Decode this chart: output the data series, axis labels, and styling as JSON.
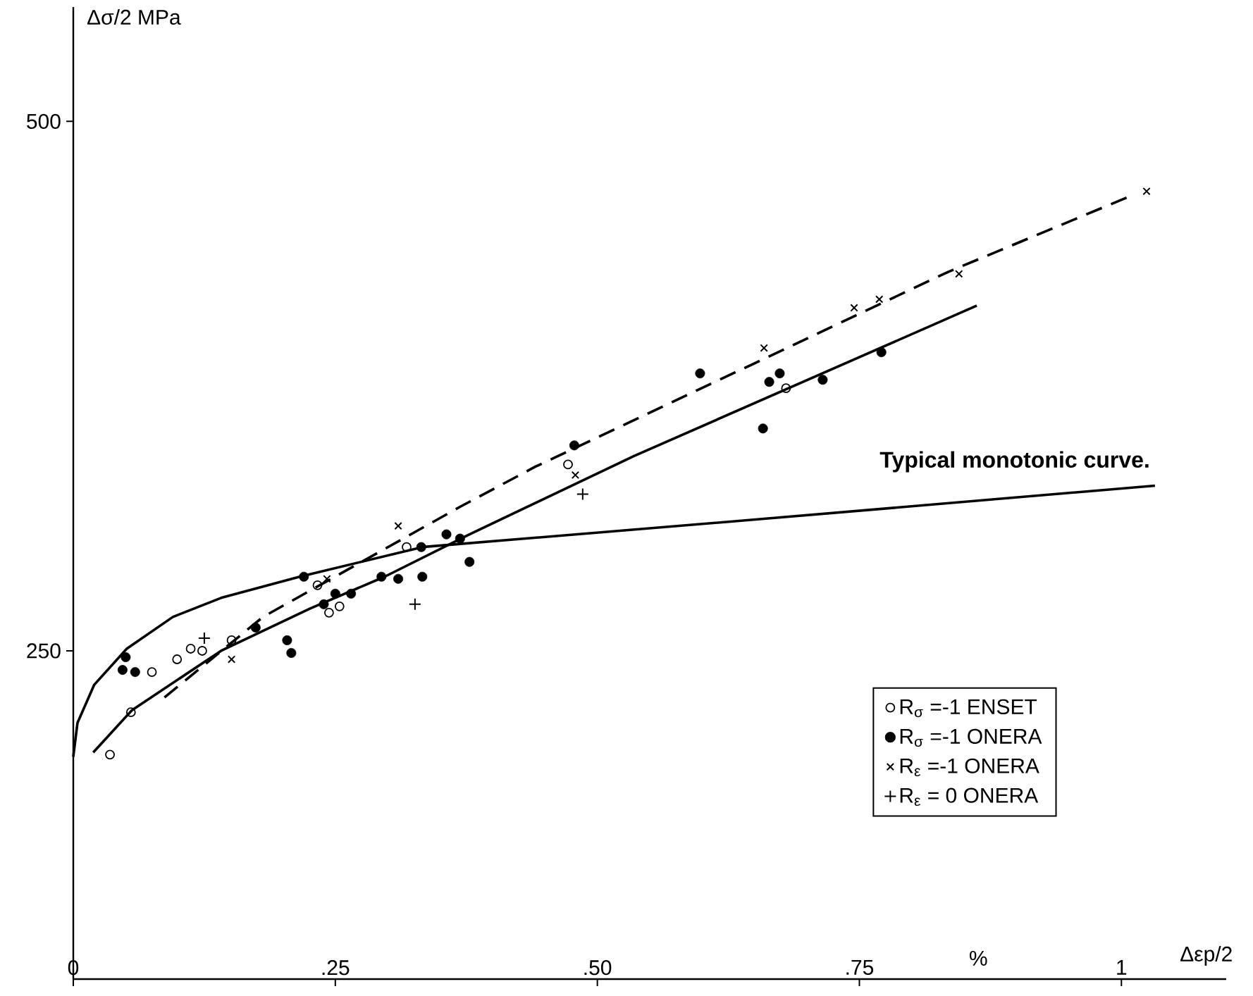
{
  "chart_data": {
    "type": "scatter",
    "xlabel": "Δεp/2",
    "ylabel": "Δσ/2  MPa",
    "annotations": [
      "%"
    ],
    "xlim": [
      0,
      1.1
    ],
    "ylim": [
      95,
      554
    ],
    "xticks": [
      {
        "value": 0,
        "label": "0"
      },
      {
        "value": 0.25,
        "label": ".25"
      },
      {
        "value": 0.5,
        "label": ".50"
      },
      {
        "value": 0.75,
        "label": ".75"
      },
      1
    ],
    "yticks": [
      250,
      500
    ],
    "grid": false,
    "legend": "bottom right",
    "series": [
      {
        "name": "R$_{σ}$ =-1   ENSET",
        "marker": "circle",
        "color": "#000000",
        "x": [
          0.035,
          0.055,
          0.075,
          0.099,
          0.112,
          0.123,
          0.151,
          0.233,
          0.244,
          0.254,
          0.318,
          0.472,
          0.68
        ],
        "values": [
          201,
          221,
          240,
          246,
          251,
          250,
          255,
          281,
          268,
          271,
          299,
          338,
          374
        ]
      },
      {
        "name": "R$_{σ}$ =-1   ONERA",
        "marker": "circle_filled",
        "color": "#000000",
        "x": [
          0.05,
          0.047,
          0.059,
          0.174,
          0.204,
          0.208,
          0.22,
          0.239,
          0.25,
          0.265,
          0.294,
          0.31,
          0.333,
          0.332,
          0.356,
          0.369,
          0.378,
          0.478,
          0.598,
          0.664,
          0.674,
          0.658,
          0.715,
          0.771
        ],
        "values": [
          247,
          241,
          240,
          261,
          255,
          249,
          285,
          272,
          277,
          277,
          285,
          284,
          285,
          299,
          305,
          303,
          292,
          347,
          381,
          377,
          381,
          355,
          378,
          391
        ]
      },
      {
        "name": "R$_{ε}$ =-1   ONERA",
        "marker": "cross",
        "color": "#000000",
        "x": [
          0.151,
          0.242,
          0.31,
          0.479,
          0.659,
          0.745,
          0.769,
          0.845,
          1.024
        ],
        "values": [
          246,
          284,
          309,
          333,
          393,
          412,
          416,
          428,
          467
        ]
      },
      {
        "name": "R$_{ε}$ = 0   ONERA",
        "marker": "plus",
        "color": "#000000",
        "x": [
          0.125,
          0.326,
          0.486
        ],
        "values": [
          256,
          272,
          324
        ]
      },
      {
        "name": "Typical monotonic curve.",
        "type": "line",
        "marker": "none",
        "line_style": "solid",
        "color": "#000000",
        "x": [
          0,
          0.004,
          0.02,
          0.051,
          0.095,
          0.141,
          0.216,
          0.333,
          0.651,
          1.032
        ],
        "values": [
          200,
          216,
          234,
          251,
          266,
          275,
          285,
          299,
          312,
          328
        ]
      },
      {
        "type": "line",
        "marker": "none",
        "line_style": "solid",
        "color": "#000000",
        "x": [
          0.019,
          0.056,
          0.141,
          0.226,
          0.297,
          0.378,
          0.535,
          0.862
        ],
        "values": [
          202,
          222,
          250,
          270,
          285,
          305,
          342,
          413
        ]
      },
      {
        "type": "line",
        "marker": "none",
        "line_style": "dashed",
        "color": "#000000",
        "x": [
          0.087,
          0.181,
          0.369,
          0.441,
          0.835,
          1.005
        ],
        "values": [
          228,
          266,
          318,
          337,
          429,
          464
        ]
      }
    ]
  }
}
